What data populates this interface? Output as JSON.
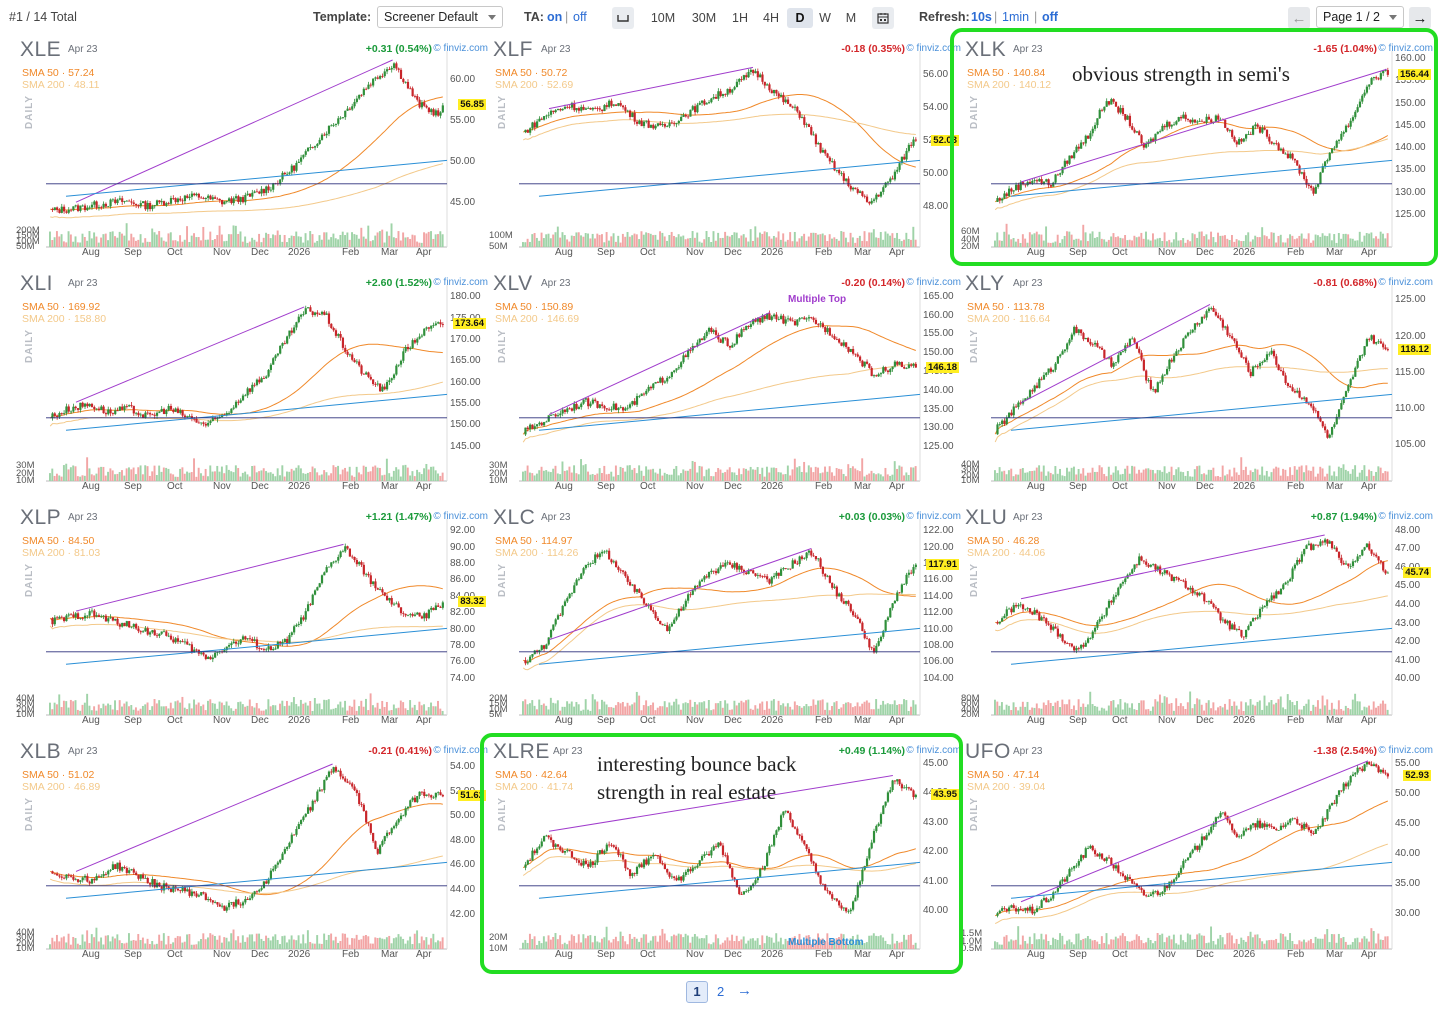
{
  "toolbar": {
    "count": "#1 / 14 Total",
    "template_label": "Template:",
    "template_value": "Screener Default",
    "ta_label": "TA:",
    "ta_on": "on",
    "ta_sep": "|",
    "ta_off": "off",
    "timeframes": [
      "10M",
      "30M",
      "1H",
      "4H",
      "D",
      "W",
      "M"
    ],
    "active_timeframe": "D",
    "refresh_label": "Refresh:",
    "refresh_10s": "10s",
    "refresh_1min": "1min",
    "refresh_off": "off",
    "page_select": "Page 1 / 2",
    "icons": {
      "prev": "arrow-left-icon",
      "next": "arrow-right-icon",
      "spacing": "spacing-icon",
      "calendar": "calendar-icon",
      "caret": "chevron-down-icon"
    }
  },
  "colors": {
    "up": "#1a9a3a",
    "down": "#d3262a",
    "sma50": "#f0892a",
    "sma200": "#f3c98a",
    "trend_purple": "#a03ccc",
    "trend_blue": "#2a8fd6",
    "level_navy": "#2a2f7a",
    "highlight": "#22dd22",
    "brand": "#4a90d9"
  },
  "brand": "© finviz.com",
  "daily_label": "DAILY",
  "date": "Apr 23",
  "annotations": {
    "xlk": "obvious strength in semi's",
    "xlre_line1": "interesting bounce back",
    "xlre_line2": "strength in real estate"
  },
  "pagination": {
    "page1": "1",
    "page2": "2",
    "next": "→"
  },
  "chart_data": [
    {
      "type": "candlestick",
      "ticker": "XLE",
      "change": "+0.31 (0.54%)",
      "direction": "up",
      "sma50": "SMA 50 · 57.24",
      "sma200": "SMA 200 · 48.11",
      "last": "56.85",
      "last_value": 56.85,
      "x_labels": [
        "Aug",
        "Sep",
        "Oct",
        "Nov",
        "Dec",
        "2026",
        "Feb",
        "Mar",
        "Apr"
      ],
      "y_labels": [
        "60.00",
        "55.00",
        "50.00",
        "45.00"
      ],
      "ylim": [
        43.5,
        62.5
      ],
      "volume_labels": [
        "200M",
        "150M",
        "100M",
        "50M"
      ],
      "trend_path": [
        44,
        44.3,
        44.8,
        45.2,
        44.6,
        45.4,
        45.8,
        45.1,
        45.6,
        47,
        49.5,
        53,
        56,
        59.5,
        62,
        57,
        55.5
      ],
      "hi_index": 14
    },
    {
      "type": "candlestick",
      "ticker": "XLF",
      "change": "-0.18 (0.35%)",
      "direction": "down",
      "sma50": "SMA 50 · 50.72",
      "sma200": "SMA 200 · 52.69",
      "last": "52.03",
      "last_value": 52.03,
      "x_labels": [
        "Aug",
        "Sep",
        "Oct",
        "Nov",
        "Dec",
        "2026",
        "Feb",
        "Mar",
        "Apr"
      ],
      "y_labels": [
        "56.00",
        "54.00",
        "52.00",
        "50.00",
        "48.00"
      ],
      "ylim": [
        47.5,
        57
      ],
      "volume_labels": [
        "100M",
        "50M"
      ],
      "trend_path": [
        52.5,
        53.6,
        54.2,
        53.8,
        54.4,
        53.2,
        52.8,
        53.6,
        54.5,
        55.2,
        56.3,
        54.8,
        53.6,
        51.2,
        49.5,
        48.2,
        49.8,
        52.4
      ],
      "hi_index": 10
    },
    {
      "type": "candlestick",
      "ticker": "XLK",
      "change": "-1.65 (1.04%)",
      "direction": "down",
      "sma50": "SMA 50 · 140.84",
      "sma200": "SMA 200 · 140.12",
      "last": "156.44",
      "last_value": 156.44,
      "x_labels": [
        "Aug",
        "Sep",
        "Oct",
        "Nov",
        "Dec",
        "2026",
        "Feb",
        "Mar",
        "Apr"
      ],
      "y_labels": [
        "160.00",
        "155.00",
        "150.00",
        "145.00",
        "140.00",
        "135.00",
        "130.00",
        "125.00"
      ],
      "ylim": [
        125,
        160
      ],
      "volume_labels": [
        "60M",
        "40M",
        "20M"
      ],
      "trend_path": [
        128,
        131,
        133,
        132,
        138,
        143,
        151,
        147,
        140,
        145,
        147,
        146,
        147,
        141,
        145,
        141,
        137,
        130,
        140,
        146,
        155,
        157
      ],
      "hi_index": 21
    },
    {
      "type": "candlestick",
      "ticker": "XLI",
      "change": "+2.60 (1.52%)",
      "direction": "up",
      "sma50": "SMA 50 · 169.92",
      "sma200": "SMA 200 · 158.80",
      "last": "173.64",
      "last_value": 173.64,
      "x_labels": [
        "Aug",
        "Sep",
        "Oct",
        "Nov",
        "Dec",
        "2026",
        "Feb",
        "Mar",
        "Apr"
      ],
      "y_labels": [
        "180.00",
        "175.00",
        "170.00",
        "165.00",
        "160.00",
        "155.00",
        "150.00",
        "145.00"
      ],
      "ylim": [
        144.5,
        181
      ],
      "volume_labels": [
        "30M",
        "20M",
        "10M"
      ],
      "trend_path": [
        152,
        154,
        155,
        153,
        154,
        152,
        154,
        152,
        150,
        153,
        158,
        162,
        170,
        177,
        176,
        168,
        162,
        158,
        167,
        172,
        174
      ],
      "hi_index": 13
    },
    {
      "type": "candlestick",
      "ticker": "XLV",
      "change": "-0.20 (0.14%)",
      "direction": "down",
      "sma50": "SMA 50 · 150.89",
      "sma200": "SMA 200 · 146.69",
      "last": "146.18",
      "last_value": 146.18,
      "x_labels": [
        "Aug",
        "Sep",
        "Oct",
        "Nov",
        "Dec",
        "2026",
        "Feb",
        "Mar",
        "Apr"
      ],
      "y_labels": [
        "165.00",
        "160.00",
        "155.00",
        "150.00",
        "145.00",
        "140.00",
        "135.00",
        "130.00",
        "125.00"
      ],
      "ylim": [
        124.5,
        166
      ],
      "volume_labels": [
        "30M",
        "20M",
        "10M"
      ],
      "trend_path": [
        129,
        132,
        135,
        137,
        136,
        135,
        140,
        144,
        150,
        156,
        152,
        158,
        160,
        158,
        159,
        155,
        150,
        144,
        147,
        146
      ],
      "hi_index": 12,
      "pattern_label": "Multiple Top"
    },
    {
      "type": "candlestick",
      "ticker": "XLY",
      "change": "-0.81 (0.68%)",
      "direction": "down",
      "sma50": "SMA 50 · 113.78",
      "sma200": "SMA 200 · 116.64",
      "last": "118.12",
      "last_value": 118.12,
      "x_labels": [
        "Aug",
        "Sep",
        "Oct",
        "Nov",
        "Dec",
        "2026",
        "Feb",
        "Mar",
        "Apr"
      ],
      "y_labels": [
        "125.00",
        "120.00",
        "115.00",
        "110.00",
        "105.00"
      ],
      "ylim": [
        104.5,
        126
      ],
      "volume_labels": [
        "40M",
        "30M",
        "20M",
        "10M"
      ],
      "trend_path": [
        107,
        110,
        113,
        116,
        121,
        119,
        116,
        120,
        112,
        117,
        121,
        124,
        120,
        115,
        118,
        113,
        111,
        106,
        113,
        120,
        118
      ],
      "hi_index": 11
    },
    {
      "type": "candlestick",
      "ticker": "XLP",
      "change": "+1.21 (1.47%)",
      "direction": "up",
      "sma50": "SMA 50 · 84.50",
      "sma200": "SMA 200 · 81.03",
      "last": "83.32",
      "last_value": 83.32,
      "x_labels": [
        "Aug",
        "Sep",
        "Oct",
        "Nov",
        "Dec",
        "2026",
        "Feb",
        "Mar",
        "Apr"
      ],
      "y_labels": [
        "92.00",
        "90.00",
        "88.00",
        "86.00",
        "84.00",
        "82.00",
        "80.00",
        "78.00",
        "76.00",
        "74.00"
      ],
      "ylim": [
        73.5,
        92.5
      ],
      "volume_labels": [
        "40M",
        "30M",
        "20M",
        "10M"
      ],
      "trend_path": [
        81,
        81.5,
        82,
        81.2,
        80.5,
        79.8,
        79.2,
        78,
        76.5,
        78,
        79,
        77.5,
        78.5,
        82,
        87,
        90,
        87,
        84,
        82,
        81.5,
        83.3
      ],
      "hi_index": 15
    },
    {
      "type": "candlestick",
      "ticker": "XLC",
      "change": "+0.03 (0.03%)",
      "direction": "up",
      "sma50": "SMA 50 · 114.97",
      "sma200": "SMA 200 · 114.26",
      "last": "117.91",
      "last_value": 117.91,
      "x_labels": [
        "Aug",
        "Sep",
        "Oct",
        "Nov",
        "Dec",
        "2026",
        "Feb",
        "Mar",
        "Apr"
      ],
      "y_labels": [
        "122.00",
        "120.00",
        "118.00",
        "116.00",
        "114.00",
        "112.00",
        "110.00",
        "108.00",
        "106.00",
        "104.00"
      ],
      "ylim": [
        103.5,
        122.5
      ],
      "volume_labels": [
        "20M",
        "15M",
        "10M",
        "5M"
      ],
      "trend_path": [
        106,
        108,
        113,
        118,
        119.5,
        116,
        113,
        110,
        114,
        117,
        118,
        117,
        116,
        118,
        119.5,
        115,
        112,
        107,
        114,
        118
      ],
      "hi_index": 14
    },
    {
      "type": "candlestick",
      "ticker": "XLU",
      "change": "+0.87 (1.94%)",
      "direction": "up",
      "sma50": "SMA 50 · 46.28",
      "sma200": "SMA 200 · 44.06",
      "last": "45.74",
      "last_value": 45.74,
      "x_labels": [
        "Aug",
        "Sep",
        "Oct",
        "Nov",
        "Dec",
        "2026",
        "Feb",
        "Mar",
        "Apr"
      ],
      "y_labels": [
        "48.00",
        "47.00",
        "46.00",
        "45.00",
        "44.00",
        "43.00",
        "42.00",
        "41.00",
        "40.00"
      ],
      "ylim": [
        39.8,
        48.2
      ],
      "volume_labels": [
        "80M",
        "60M",
        "40M",
        "20M"
      ],
      "trend_path": [
        43,
        44,
        43.5,
        42.5,
        41.5,
        43,
        45,
        46.5,
        45.8,
        45.2,
        44.5,
        43.2,
        42.3,
        44,
        45,
        47,
        47.6,
        46,
        47.2,
        45.7
      ],
      "hi_index": 16
    },
    {
      "type": "candlestick",
      "ticker": "XLB",
      "change": "-0.21 (0.41%)",
      "direction": "down",
      "sma50": "SMA 50 · 51.02",
      "sma200": "SMA 200 · 46.89",
      "last": "51.62",
      "last_value": 51.62,
      "x_labels": [
        "Aug",
        "Sep",
        "Oct",
        "Nov",
        "Dec",
        "2026",
        "Feb",
        "Mar",
        "Apr"
      ],
      "y_labels": [
        "54.00",
        "52.00",
        "50.00",
        "48.00",
        "46.00",
        "44.00",
        "42.00"
      ],
      "ylim": [
        41.8,
        54.5
      ],
      "volume_labels": [
        "40M",
        "30M",
        "20M",
        "10M"
      ],
      "trend_path": [
        45.5,
        45,
        44.8,
        46,
        45.2,
        44.3,
        44,
        43.5,
        42.6,
        43.2,
        45,
        48,
        51,
        54,
        52,
        47.2,
        50,
        52,
        51.6
      ],
      "hi_index": 13
    },
    {
      "type": "candlestick",
      "ticker": "XLRE",
      "change": "+0.49 (1.14%)",
      "direction": "up",
      "sma50": "SMA 50 · 42.64",
      "sma200": "SMA 200 · 41.74",
      "last": "43.95",
      "last_value": 43.95,
      "x_labels": [
        "Aug",
        "Sep",
        "Oct",
        "Nov",
        "Dec",
        "2026",
        "Feb",
        "Mar",
        "Apr"
      ],
      "y_labels": [
        "45.00",
        "44.00",
        "43.00",
        "42.00",
        "41.00",
        "40.00"
      ],
      "ylim": [
        39.8,
        45.1
      ],
      "volume_labels": [
        "20M",
        "10M"
      ],
      "trend_path": [
        41.5,
        42.5,
        42,
        41.5,
        42.4,
        41.2,
        42,
        41,
        41.6,
        42.3,
        40.5,
        41.5,
        43.5,
        42,
        40.5,
        39.9,
        42.5,
        44.5,
        43.9
      ],
      "hi_index": 17,
      "pattern_label": "Multiple Bottom"
    },
    {
      "type": "candlestick",
      "ticker": "UFO",
      "change": "-1.38 (2.54%)",
      "direction": "down",
      "sma50": "SMA 50 · 47.14",
      "sma200": "SMA 200 · 39.04",
      "last": "52.93",
      "last_value": 52.93,
      "x_labels": [
        "Aug",
        "Sep",
        "Oct",
        "Nov",
        "Dec",
        "2026",
        "Feb",
        "Mar",
        "Apr"
      ],
      "y_labels": [
        "55.00",
        "50.00",
        "45.00",
        "40.00",
        "35.00",
        "30.00"
      ],
      "ylim": [
        29.5,
        55.5
      ],
      "volume_labels": [
        "1.5M",
        "1.0M",
        "0.5M"
      ],
      "trend_path": [
        30,
        31,
        30.5,
        33,
        37,
        41,
        39,
        36,
        33,
        34,
        38,
        42,
        47,
        43,
        45,
        44,
        46,
        43,
        48,
        53,
        55,
        52.9
      ],
      "hi_index": 20
    }
  ]
}
